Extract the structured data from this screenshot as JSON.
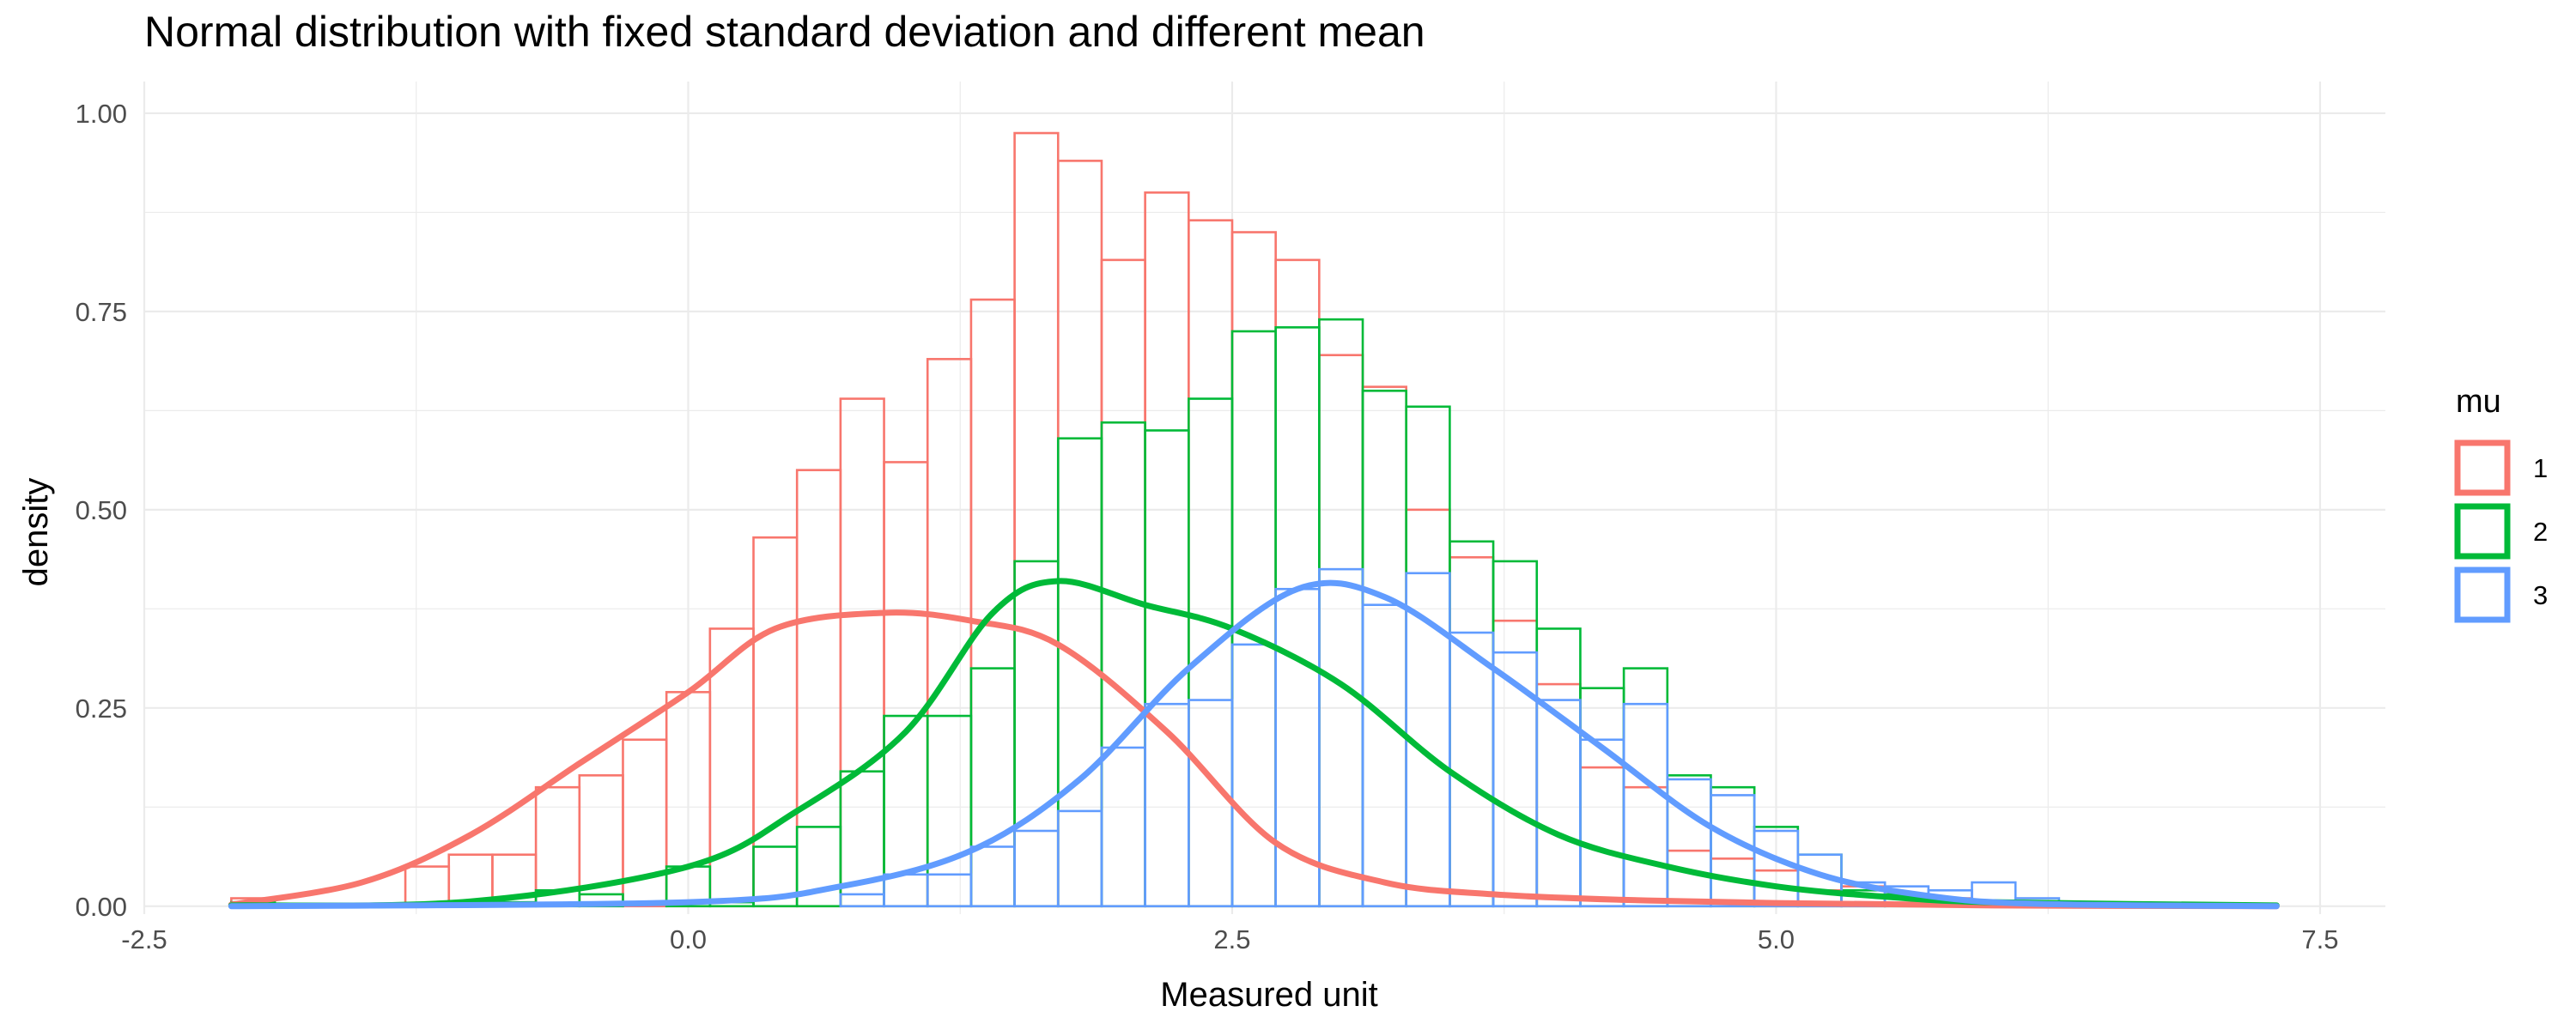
{
  "chart_data": {
    "type": "histogram+density",
    "title": "Normal distribution with fixed standard deviation and different mean",
    "xlabel": "Measured unit",
    "ylabel": "density",
    "xlim": [
      -2.5,
      7.8
    ],
    "ylim": [
      -0.01,
      1.04
    ],
    "x_ticks": [
      -2.5,
      0.0,
      2.5,
      5.0,
      7.5
    ],
    "x_tick_labels": [
      "-2.5",
      "0.0",
      "2.5",
      "5.0",
      "7.5"
    ],
    "y_ticks": [
      0.0,
      0.25,
      0.5,
      0.75,
      1.0
    ],
    "y_tick_labels": [
      "0.00",
      "0.25",
      "0.50",
      "0.75",
      "1.00"
    ],
    "grid": true,
    "legend": {
      "title": "mu",
      "position": "right"
    },
    "bin_start": -2.1,
    "bin_width": 0.2,
    "series": [
      {
        "name": "1",
        "color": "#F8766D",
        "histogram": [
          0.01,
          0.0,
          0.0,
          0.0,
          0.05,
          0.065,
          0.065,
          0.15,
          0.165,
          0.21,
          0.27,
          0.35,
          0.465,
          0.55,
          0.64,
          0.56,
          0.69,
          0.765,
          0.975,
          0.94,
          0.815,
          0.9,
          0.865,
          0.85,
          0.815,
          0.695,
          0.655,
          0.5,
          0.44,
          0.36,
          0.28,
          0.175,
          0.15,
          0.07,
          0.06,
          0.045,
          0.02,
          0.025,
          0.015,
          0.01,
          0.005,
          0.0,
          0.0,
          0.0,
          0.0,
          0.0,
          0.0
        ],
        "density_x": [
          -2.1,
          -1.5,
          -1.0,
          -0.5,
          0.0,
          0.4,
          0.9,
          1.3,
          1.7,
          2.2,
          2.7,
          3.2,
          3.7,
          4.3,
          5.0,
          6.0,
          7.3
        ],
        "density_y": [
          0.002,
          0.03,
          0.09,
          0.18,
          0.27,
          0.35,
          0.37,
          0.36,
          0.33,
          0.22,
          0.08,
          0.03,
          0.015,
          0.008,
          0.004,
          0.001,
          0.0
        ]
      },
      {
        "name": "2",
        "color": "#00BA38",
        "histogram": [
          0.005,
          0.0,
          0.0,
          0.0,
          0.0,
          0.005,
          0.005,
          0.02,
          0.015,
          0.0,
          0.05,
          0.005,
          0.075,
          0.1,
          0.17,
          0.24,
          0.24,
          0.3,
          0.435,
          0.59,
          0.61,
          0.6,
          0.64,
          0.725,
          0.73,
          0.74,
          0.65,
          0.63,
          0.46,
          0.435,
          0.35,
          0.275,
          0.3,
          0.165,
          0.15,
          0.1,
          0.065,
          0.02,
          0.015,
          0.005,
          0.0,
          0.0,
          0.0,
          0.0,
          0.0,
          0.0,
          0.0
        ],
        "density_x": [
          -2.1,
          -1.0,
          0.0,
          0.5,
          1.0,
          1.4,
          1.7,
          2.1,
          2.5,
          3.0,
          3.5,
          4.0,
          4.5,
          5.0,
          5.5,
          6.0,
          7.3
        ],
        "density_y": [
          0.001,
          0.006,
          0.05,
          0.12,
          0.22,
          0.37,
          0.41,
          0.38,
          0.35,
          0.28,
          0.17,
          0.09,
          0.05,
          0.025,
          0.012,
          0.005,
          0.001
        ]
      },
      {
        "name": "3",
        "color": "#619CFF",
        "histogram": [
          0.0,
          0.0,
          0.0,
          0.0,
          0.0,
          0.0,
          0.0,
          0.0,
          0.0,
          0.0,
          0.0,
          0.0,
          0.0,
          0.0,
          0.015,
          0.04,
          0.04,
          0.075,
          0.095,
          0.12,
          0.2,
          0.255,
          0.26,
          0.33,
          0.4,
          0.425,
          0.38,
          0.42,
          0.345,
          0.32,
          0.26,
          0.21,
          0.255,
          0.16,
          0.14,
          0.095,
          0.065,
          0.03,
          0.025,
          0.02,
          0.03,
          0.01,
          0.005,
          0.0,
          0.0,
          0.0,
          0.0
        ],
        "density_x": [
          -2.1,
          0.0,
          0.7,
          1.3,
          1.8,
          2.3,
          2.8,
          3.2,
          3.7,
          4.2,
          4.7,
          5.2,
          5.7,
          6.2,
          7.3
        ],
        "density_y": [
          0.0,
          0.005,
          0.025,
          0.07,
          0.16,
          0.3,
          0.4,
          0.39,
          0.3,
          0.2,
          0.1,
          0.04,
          0.013,
          0.003,
          0.0
        ]
      }
    ]
  }
}
